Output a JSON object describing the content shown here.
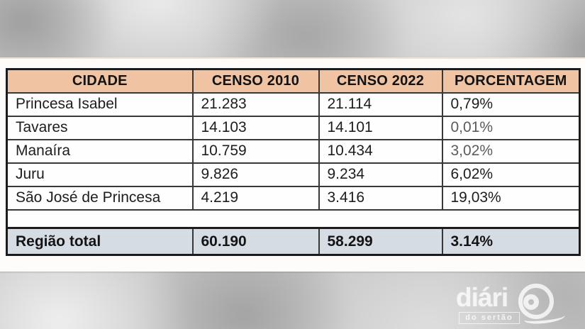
{
  "table": {
    "headers": [
      "CIDADE",
      "CENSO 2010",
      "CENSO 2022",
      "PORCENTAGEM"
    ],
    "rows": [
      {
        "cells": [
          "Princesa Isabel",
          "21.283",
          "21.114",
          "0,79%"
        ]
      },
      {
        "cells": [
          "Tavares",
          "14.103",
          "14.101",
          "0,01%"
        ]
      },
      {
        "cells": [
          "Manaíra",
          "10.759",
          "10.434",
          "3,02%"
        ]
      },
      {
        "cells": [
          "Juru",
          "9.826",
          "9.234",
          "6,02%"
        ]
      },
      {
        "cells": [
          "São José de Princesa",
          "4.219",
          "3.416",
          "19,03%"
        ]
      }
    ],
    "total": {
      "cells": [
        "Região total",
        "60.190",
        "58.299",
        "3.14%"
      ]
    }
  },
  "logo": {
    "title": "diári",
    "subtitle": "do sertão"
  },
  "colors": {
    "header_bg": "#f0c4a2",
    "total_row_bg": "#d6dce4",
    "grid_line": "#383838",
    "outer_border": "#1c1c1c",
    "panel_bg": "#fdfcfa"
  }
}
